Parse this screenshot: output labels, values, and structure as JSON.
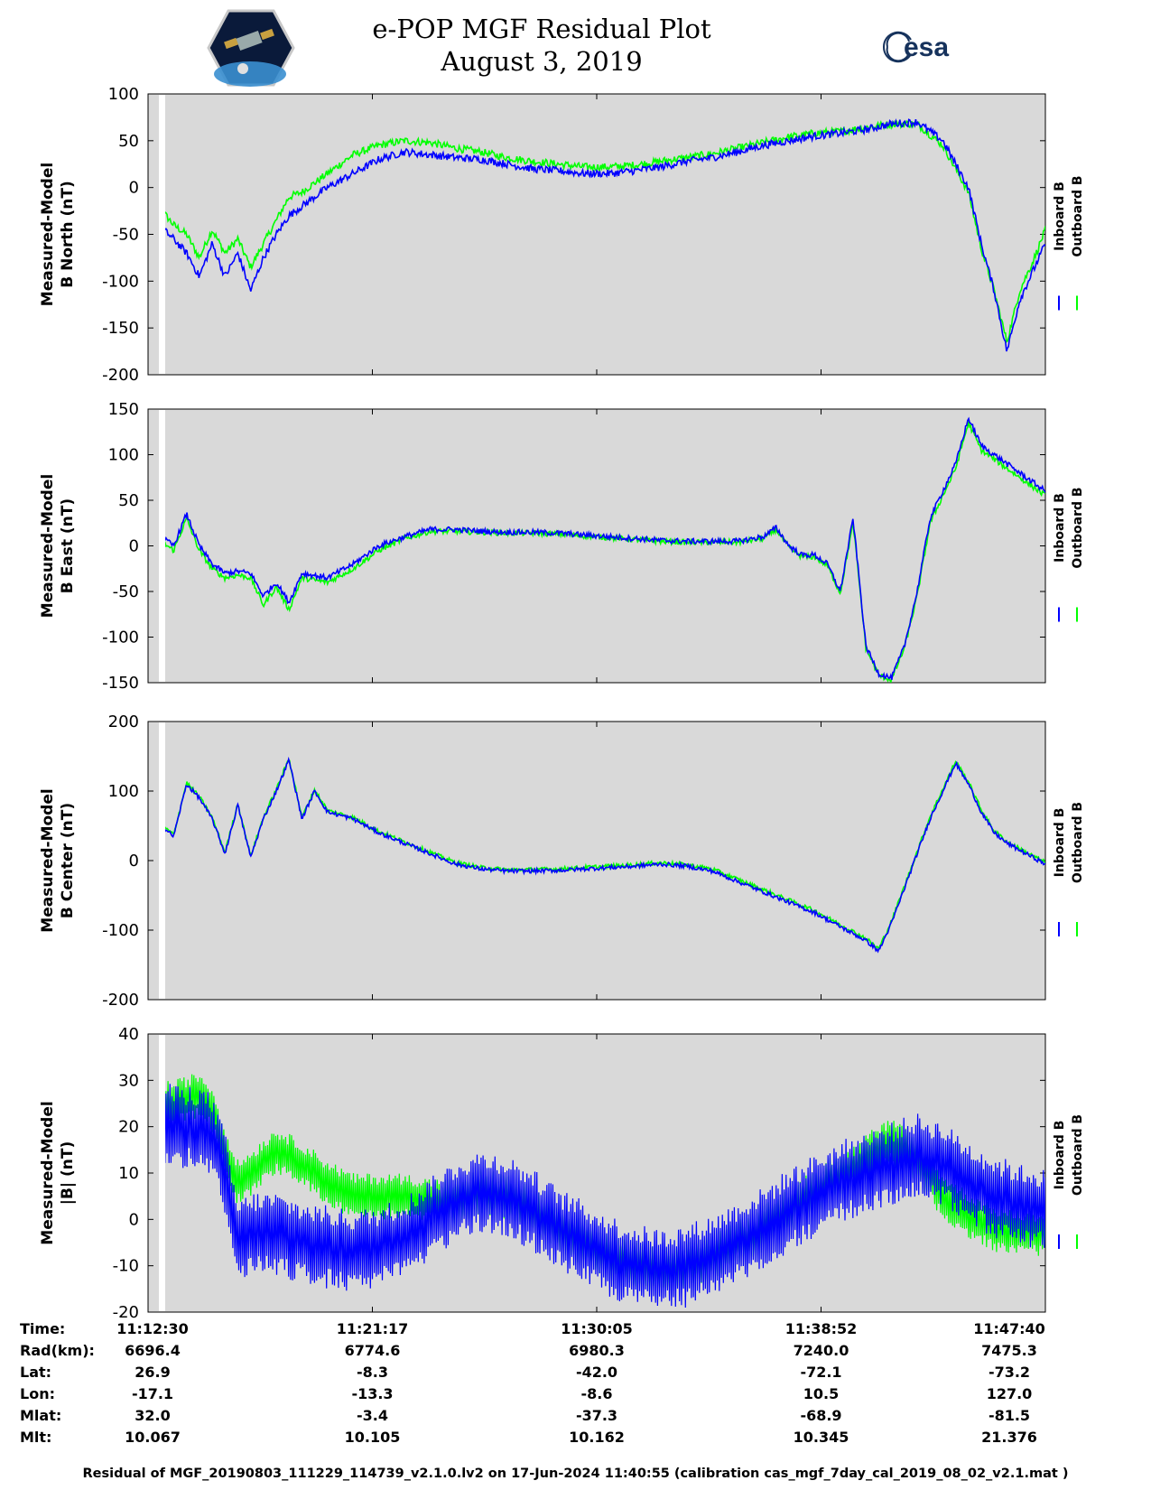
{
  "title": {
    "line1": "e-POP MGF Residual Plot",
    "line2": "August 3, 2019"
  },
  "logos": {
    "left": "cassiope-mission-logo",
    "right_text": "esa"
  },
  "colors": {
    "inboard": "#0000ff",
    "outboard": "#00ff00",
    "plot_bg": "#d9d9d9"
  },
  "chart_data": [
    {
      "type": "line",
      "id": "north",
      "ylabel_line1": "Measured-Model",
      "ylabel_line2": "B North (nT)",
      "ylim": [
        -200,
        100
      ],
      "yticks": [
        100,
        50,
        0,
        -50,
        -100,
        -150,
        -200
      ],
      "series": [
        {
          "name": "Inboard B",
          "color": "#0000ff",
          "x": [
            0,
            0.4,
            1,
            1.5,
            2,
            2.5,
            3,
            3.5,
            4,
            4.5,
            5,
            5.5,
            6,
            7,
            8,
            9,
            10,
            11,
            12,
            13,
            14,
            15,
            16,
            17,
            18,
            19,
            20,
            21,
            22,
            23,
            24,
            25,
            26,
            27,
            28,
            29,
            30,
            31,
            32,
            32.5,
            33,
            33.5,
            34,
            34.5,
            35
          ],
          "y": [
            -65,
            -40,
            -55,
            -70,
            -95,
            -60,
            -95,
            -70,
            -110,
            -75,
            -50,
            -30,
            -20,
            0,
            15,
            30,
            38,
            35,
            32,
            30,
            25,
            20,
            18,
            15,
            15,
            18,
            22,
            28,
            32,
            38,
            45,
            50,
            55,
            58,
            62,
            68,
            70,
            50,
            0,
            -60,
            -110,
            -175,
            -120,
            -90,
            -60
          ]
        },
        {
          "name": "Outboard B",
          "color": "#00ff00",
          "x": [
            0,
            0.4,
            1,
            1.5,
            2,
            2.5,
            3,
            3.5,
            4,
            4.5,
            5,
            5.5,
            6,
            7,
            8,
            9,
            10,
            11,
            12,
            13,
            14,
            15,
            16,
            17,
            18,
            19,
            20,
            21,
            22,
            23,
            24,
            25,
            26,
            27,
            28,
            29,
            30,
            31,
            32,
            32.5,
            33,
            33.5,
            34,
            34.5,
            35
          ],
          "y": [
            -55,
            -20,
            -40,
            -50,
            -75,
            -45,
            -70,
            -55,
            -85,
            -60,
            -35,
            -10,
            -5,
            15,
            35,
            45,
            50,
            48,
            42,
            38,
            32,
            28,
            25,
            22,
            22,
            24,
            28,
            32,
            36,
            42,
            48,
            54,
            58,
            60,
            64,
            68,
            68,
            45,
            -5,
            -65,
            -110,
            -165,
            -110,
            -80,
            -45
          ]
        }
      ]
    },
    {
      "type": "line",
      "id": "east",
      "ylabel_line1": "Measured-Model",
      "ylabel_line2": "B East (nT)",
      "ylim": [
        -150,
        150
      ],
      "yticks": [
        150,
        100,
        50,
        0,
        -50,
        -100,
        -150
      ],
      "series": [
        {
          "name": "Inboard B",
          "color": "#0000ff",
          "x": [
            0,
            0.5,
            1,
            1.5,
            2,
            2.5,
            3,
            3.5,
            4,
            4.5,
            5,
            5.5,
            6,
            7,
            8,
            9,
            10,
            11,
            12,
            13,
            14,
            15,
            16,
            17,
            18,
            19,
            20,
            21,
            22,
            23,
            24,
            24.5,
            25,
            25.5,
            26,
            26.5,
            27,
            27.5,
            28,
            28.5,
            29,
            29.5,
            30,
            30.5,
            31,
            31.5,
            32,
            32.5,
            33,
            33.5,
            34,
            34.5,
            35
          ],
          "y": [
            20,
            10,
            0,
            35,
            0,
            -20,
            -30,
            -28,
            -30,
            -55,
            -40,
            -62,
            -30,
            -35,
            -20,
            0,
            10,
            18,
            18,
            16,
            15,
            15,
            14,
            12,
            10,
            8,
            6,
            5,
            5,
            5,
            10,
            20,
            0,
            -10,
            -10,
            -20,
            -50,
            30,
            -110,
            -140,
            -145,
            -110,
            -50,
            30,
            60,
            90,
            140,
            110,
            100,
            90,
            80,
            70,
            60
          ]
        },
        {
          "name": "Outboard B",
          "color": "#00ff00",
          "x": [
            0,
            0.5,
            1,
            1.5,
            2,
            2.5,
            3,
            3.5,
            4,
            4.5,
            5,
            5.5,
            6,
            7,
            8,
            9,
            10,
            11,
            12,
            13,
            14,
            15,
            16,
            17,
            18,
            19,
            20,
            21,
            22,
            23,
            24,
            24.5,
            25,
            25.5,
            26,
            26.5,
            27,
            27.5,
            28,
            28.5,
            29,
            29.5,
            30,
            30.5,
            31,
            31.5,
            32,
            32.5,
            33,
            33.5,
            34,
            34.5,
            35
          ],
          "y": [
            15,
            5,
            -5,
            30,
            -5,
            -25,
            -35,
            -32,
            -35,
            -65,
            -45,
            -70,
            -35,
            -40,
            -25,
            -5,
            8,
            16,
            16,
            15,
            14,
            14,
            13,
            11,
            9,
            7,
            5,
            4,
            4,
            4,
            8,
            18,
            -2,
            -12,
            -12,
            -22,
            -52,
            25,
            -112,
            -142,
            -147,
            -112,
            -55,
            25,
            55,
            85,
            135,
            105,
            95,
            85,
            75,
            65,
            55
          ]
        }
      ]
    },
    {
      "type": "line",
      "id": "center",
      "ylabel_line1": "Measured-Model",
      "ylabel_line2": "B Center (nT)",
      "ylim": [
        -200,
        200
      ],
      "yticks": [
        200,
        100,
        0,
        -100,
        -200
      ],
      "series": [
        {
          "name": "Inboard B",
          "color": "#0000ff",
          "x": [
            0,
            0.5,
            1,
            1.5,
            2,
            2.5,
            3,
            3.5,
            4,
            4.5,
            5,
            5.5,
            6,
            6.5,
            7,
            8,
            9,
            10,
            11,
            12,
            13,
            14,
            15,
            16,
            17,
            18,
            19,
            20,
            21,
            22,
            23,
            24,
            25,
            26,
            27,
            28,
            28.5,
            29,
            29.5,
            30,
            30.5,
            31,
            31.5,
            32,
            32.5,
            33,
            33.5,
            34,
            34.5,
            35
          ],
          "y": [
            55,
            50,
            35,
            110,
            90,
            60,
            10,
            80,
            5,
            60,
            100,
            145,
            60,
            100,
            70,
            60,
            40,
            25,
            10,
            -5,
            -12,
            -15,
            -15,
            -14,
            -12,
            -10,
            -8,
            -5,
            -8,
            -15,
            -30,
            -45,
            -60,
            -75,
            -95,
            -115,
            -130,
            -90,
            -40,
            10,
            60,
            100,
            140,
            110,
            70,
            40,
            25,
            15,
            5,
            -5
          ]
        },
        {
          "name": "Outboard B",
          "color": "#00ff00",
          "x": [
            0,
            0.5,
            1,
            1.5,
            2,
            2.5,
            3,
            3.5,
            4,
            4.5,
            5,
            5.5,
            6,
            6.5,
            7,
            8,
            9,
            10,
            11,
            12,
            13,
            14,
            15,
            16,
            17,
            18,
            19,
            20,
            21,
            22,
            23,
            24,
            25,
            26,
            27,
            28,
            28.5,
            29,
            29.5,
            30,
            30.5,
            31,
            31.5,
            32,
            32.5,
            33,
            33.5,
            34,
            34.5,
            35
          ],
          "y": [
            60,
            52,
            37,
            112,
            92,
            62,
            12,
            82,
            7,
            62,
            102,
            147,
            62,
            102,
            72,
            62,
            42,
            27,
            12,
            -3,
            -10,
            -13,
            -13,
            -12,
            -10,
            -8,
            -6,
            -3,
            -6,
            -12,
            -27,
            -42,
            -57,
            -72,
            -92,
            -112,
            -127,
            -87,
            -37,
            13,
            63,
            103,
            143,
            113,
            73,
            43,
            27,
            17,
            7,
            -3
          ]
        }
      ]
    },
    {
      "type": "line",
      "id": "magnitude",
      "ylabel_line1": "Measured-Model",
      "ylabel_line2": "|B| (nT)",
      "ylim": [
        -20,
        40
      ],
      "yticks": [
        40,
        30,
        20,
        10,
        0,
        -10,
        -20
      ],
      "series": [
        {
          "name": "Inboard B",
          "color": "#0000ff",
          "x": [
            0,
            1,
            2,
            2.5,
            3,
            3.5,
            4,
            5,
            6,
            7,
            8,
            9,
            10,
            11,
            12,
            13,
            14,
            15,
            16,
            17,
            18,
            19,
            20,
            21,
            22,
            23,
            24,
            25,
            26,
            27,
            28,
            29,
            30,
            31,
            32,
            33,
            34,
            35
          ],
          "y": [
            22,
            20,
            20,
            18,
            10,
            -5,
            -3,
            -3,
            -5,
            -6,
            -7,
            -6,
            -4,
            0,
            4,
            6,
            5,
            2,
            -2,
            -5,
            -8,
            -10,
            -11,
            -10,
            -8,
            -5,
            -2,
            2,
            5,
            8,
            10,
            12,
            14,
            12,
            8,
            5,
            3,
            2
          ]
        },
        {
          "name": "Outboard B",
          "color": "#00ff00",
          "x": [
            0,
            1,
            2,
            2.5,
            3,
            3.5,
            4,
            5,
            6,
            7,
            8,
            9,
            10,
            11,
            12,
            13,
            14,
            15,
            16,
            17,
            18,
            19,
            20,
            21,
            22,
            23,
            24,
            25,
            26,
            27,
            28,
            29,
            30,
            31,
            32,
            33,
            34,
            35
          ],
          "y": [
            25,
            25,
            27,
            24,
            15,
            8,
            10,
            15,
            12,
            8,
            5,
            5,
            5,
            4,
            4,
            6,
            5,
            2,
            -2,
            -5,
            -8,
            -10,
            -11,
            -10,
            -8,
            -5,
            -2,
            2,
            6,
            10,
            14,
            17,
            13,
            5,
            1,
            -2,
            -3,
            -3
          ]
        }
      ]
    }
  ],
  "legend": {
    "inboard": "Inboard B",
    "outboard": "Outboard B"
  },
  "info_table": {
    "labels": [
      "Time:",
      "Rad(km):",
      "Lat:",
      "Lon:",
      "Mlat:",
      "Mlt:"
    ],
    "columns": [
      [
        "11:12:30",
        "6696.4",
        "26.9",
        "-17.1",
        "32.0",
        "10.067"
      ],
      [
        "11:21:17",
        "6774.6",
        "-8.3",
        "-13.3",
        "-3.4",
        "10.105"
      ],
      [
        "11:30:05",
        "6980.3",
        "-42.0",
        "-8.6",
        "-37.3",
        "10.162"
      ],
      [
        "11:38:52",
        "7240.0",
        "-72.1",
        "10.5",
        "-68.9",
        "10.345"
      ],
      [
        "11:47:40",
        "7475.3",
        "-73.2",
        "127.0",
        "-81.5",
        "21.376"
      ]
    ]
  },
  "footer": "Residual of MGF_20190803_111229_114739_v2.1.0.lv2 on 17-Jun-2024 11:40:55 (calibration cas_mgf_7day_cal_2019_08_02_v2.1.mat )"
}
